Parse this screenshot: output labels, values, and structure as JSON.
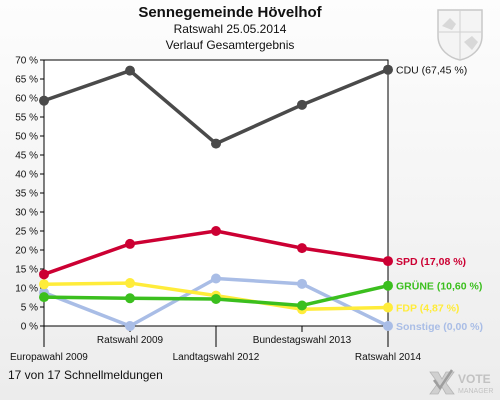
{
  "header": {
    "title": "Sennegemeinde Hövelhof",
    "subtitle": "Ratswahl 25.05.2014",
    "caption": "Verlauf Gesamtergebnis"
  },
  "footer": {
    "status": "17 von 17 Schnellmeldungen"
  },
  "branding": {
    "logo_line1": "VOTE",
    "logo_line2": "MANAGER",
    "crest_icon": "state-crest-icon"
  },
  "chart_data": {
    "type": "line",
    "title": "Verlauf Gesamtergebnis",
    "categories": [
      "Europawahl 2009",
      "Ratswahl 2009",
      "Landtagswahl 2012",
      "Bundestagswahl 2013",
      "Ratswahl 2014"
    ],
    "ylim": [
      0,
      70
    ],
    "yticks": [
      0,
      5,
      10,
      15,
      20,
      25,
      30,
      35,
      40,
      45,
      50,
      55,
      60,
      65,
      70
    ],
    "ytick_labels": [
      "0 %",
      "5 %",
      "10 %",
      "15 %",
      "20 %",
      "25 %",
      "30 %",
      "35 %",
      "40 %",
      "45 %",
      "50 %",
      "55 %",
      "60 %",
      "65 %",
      "70 %"
    ],
    "grid": false,
    "legend": "end-labels-right",
    "series": [
      {
        "name": "Sonstige",
        "label": "Sonstige (0,00 %)",
        "color": "#a9bde6",
        "values": [
          8.8,
          0.0,
          12.5,
          11.1,
          0.0
        ]
      },
      {
        "name": "FDP",
        "label": "FDP (4,87 %)",
        "color": "#ffec3a",
        "values": [
          11.0,
          11.3,
          8.0,
          4.4,
          4.87
        ]
      },
      {
        "name": "GRÜNE",
        "label": "GRÜNE (10,60 %)",
        "color": "#3bbf1e",
        "values": [
          7.6,
          7.3,
          7.1,
          5.4,
          10.6
        ]
      },
      {
        "name": "SPD",
        "label": "SPD (17,08 %)",
        "color": "#cc0033",
        "values": [
          13.6,
          21.6,
          25.0,
          20.5,
          17.08
        ]
      },
      {
        "name": "CDU",
        "label": "CDU (67,45 %)",
        "color": "#4a4a4a",
        "values": [
          59.3,
          67.2,
          48.0,
          58.2,
          67.45
        ]
      }
    ]
  }
}
